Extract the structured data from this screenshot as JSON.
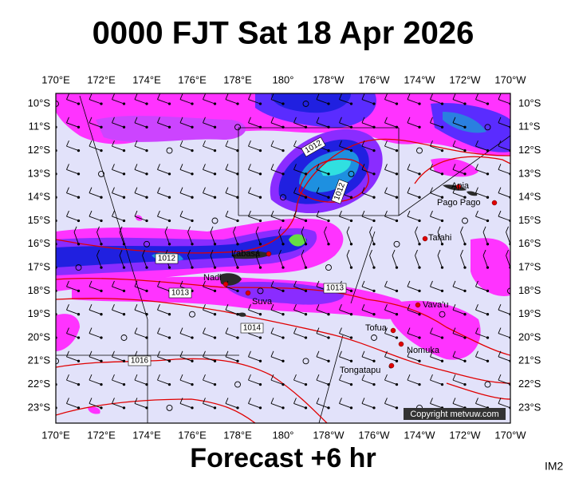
{
  "title": "0000 FJT Sat 18 Apr 2026",
  "footer": "Forecast +6 hr",
  "code": "IM2",
  "copyright": "Copyright metvuw.com",
  "longitudes": [
    "170°E",
    "172°E",
    "174°E",
    "176°E",
    "178°E",
    "180°",
    "178°W",
    "176°W",
    "174°W",
    "172°W",
    "170°W"
  ],
  "latitudes": [
    "10°S",
    "11°S",
    "12°S",
    "13°S",
    "14°S",
    "15°S",
    "16°S",
    "17°S",
    "18°S",
    "19°S",
    "20°S",
    "21°S",
    "22°S",
    "23°S"
  ],
  "places": [
    "Apia",
    "Pago Pago",
    "Tafahi",
    "Labasa",
    "Nadi",
    "Suva",
    "Vava'u",
    "Tofua",
    "Nomuka",
    "Tongatapu"
  ],
  "isobars": [
    "1012",
    "1012",
    "1012",
    "1013",
    "1013",
    "1014",
    "1016"
  ]
}
